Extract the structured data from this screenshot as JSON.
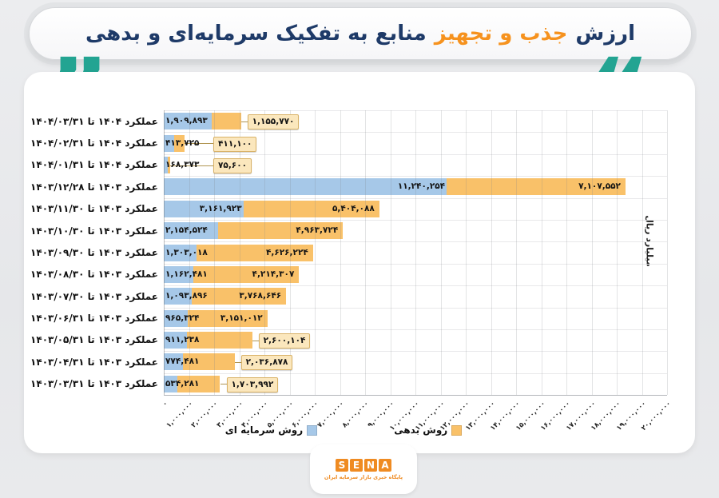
{
  "header": {
    "title_part1": "ارزش",
    "title_highlight": "جذب و تجهیز",
    "title_part2": "منابع به تفکیک سرمایه‌ای و بدهی",
    "quote_left_glyph": "”",
    "quote_right_glyph": "“",
    "quote_color": "#23a492",
    "title_color": "#1e3a68",
    "highlight_color": "#f6921e"
  },
  "chart_data": {
    "type": "bar",
    "orientation": "horizontal-stacked",
    "title": "ارزش جذب و تجهیز منابع به تفکیک سرمایه‌ای و بدهی",
    "value_axis_label": "میلیارد ریال",
    "axis_min": 0,
    "axis_max": 20000000,
    "axis_tick_step": 1000000,
    "grid": true,
    "legend_position": "bottom",
    "axis_tick_labels": [
      "۰",
      "۱,۰۰۰,۰۰۰",
      "۲,۰۰۰,۰۰۰",
      "۳,۰۰۰,۰۰۰",
      "۴,۰۰۰,۰۰۰",
      "۵,۰۰۰,۰۰۰",
      "۶,۰۰۰,۰۰۰",
      "۷,۰۰۰,۰۰۰",
      "۸,۰۰۰,۰۰۰",
      "۹,۰۰۰,۰۰۰",
      "۱۰,۰۰۰,۰۰۰",
      "۱۱,۰۰۰,۰۰۰",
      "۱۲,۰۰۰,۰۰۰",
      "۱۳,۰۰۰,۰۰۰",
      "۱۴,۰۰۰,۰۰۰",
      "۱۵,۰۰۰,۰۰۰",
      "۱۶,۰۰۰,۰۰۰",
      "۱۷,۰۰۰,۰۰۰",
      "۱۸,۰۰۰,۰۰۰",
      "۱۹,۰۰۰,۰۰۰",
      "۲۰,۰۰۰,۰۰۰"
    ],
    "categories": [
      "عملکرد ۱۴۰۴ تا ۱۴۰۴/۰۳/۳۱",
      "عملکرد ۱۴۰۴ تا ۱۴۰۴/۰۲/۳۱",
      "عملکرد ۱۴۰۴ تا ۱۴۰۴/۰۱/۳۱",
      "عملکرد ۱۴۰۳ تا ۱۴۰۳/۱۲/۲۸",
      "عملکرد ۱۴۰۳ تا ۱۴۰۳/۱۱/۳۰",
      "عملکرد ۱۴۰۳ تا ۱۴۰۳/۱۰/۳۰",
      "عملکرد ۱۴۰۳ تا ۱۴۰۳/۰۹/۳۰",
      "عملکرد ۱۴۰۳ تا ۱۴۰۳/۰۸/۳۰",
      "عملکرد ۱۴۰۳ تا ۱۴۰۳/۰۷/۳۰",
      "عملکرد ۱۴۰۳ تا ۱۴۰۳/۰۶/۳۱",
      "عملکرد ۱۴۰۳ تا ۱۴۰۳/۰۵/۳۱",
      "عملکرد ۱۴۰۳ تا ۱۴۰۳/۰۴/۳۱",
      "عملکرد ۱۴۰۳ تا ۱۴۰۳/۰۳/۳۱"
    ],
    "series": [
      {
        "name": "روش سرمایه ای",
        "color": "#a6c8e8",
        "values": [
          1909893,
          413725,
          168373,
          11240254,
          3161923,
          2154524,
          1303018,
          1162481,
          1093896,
          965324,
          911238,
          774481,
          534281
        ],
        "labels": [
          "۱,۹۰۹,۸۹۳",
          "۴۱۳,۷۲۵",
          "۱۶۸,۳۷۳",
          "۱۱,۲۴۰,۲۵۴",
          "۳,۱۶۱,۹۲۳",
          "۲,۱۵۴,۵۲۴",
          "۱,۳۰۳,۰۱۸",
          "۱,۱۶۲,۴۸۱",
          "۱,۰۹۳,۸۹۶",
          "۹۶۵,۳۲۴",
          "۹۱۱,۲۳۸",
          "۷۷۴,۴۸۱",
          "۵۳۴,۲۸۱"
        ]
      },
      {
        "name": "روش بدهی",
        "color": "#f9c169",
        "values": [
          1155770,
          411100,
          75600,
          7107552,
          5404088,
          4963724,
          4626224,
          4214307,
          3768646,
          3151012,
          2600104,
          2036878,
          1703992
        ],
        "labels": [
          "۱,۱۵۵,۷۷۰",
          "۴۱۱,۱۰۰",
          "۷۵,۶۰۰",
          "۷,۱۰۷,۵۵۲",
          "۵,۴۰۴,۰۸۸",
          "۴,۹۶۳,۷۲۴",
          "۴,۶۲۶,۲۲۴",
          "۴,۲۱۴,۳۰۷",
          "۳,۷۶۸,۶۴۶",
          "۳,۱۵۱,۰۱۲",
          "۲,۶۰۰,۱۰۴",
          "۲,۰۳۶,۸۷۸",
          "۱,۷۰۳,۹۹۲"
        ]
      }
    ],
    "legend": [
      {
        "label": "روش سرمایه ای",
        "color": "#a6c8e8"
      },
      {
        "label": "روش بدهی",
        "color": "#f9c169"
      }
    ]
  },
  "footer": {
    "logo_letters": [
      "S",
      "E",
      "N",
      "A"
    ],
    "logo_color": "#ef8b22",
    "tagline": "پایگاه خبری بازار سرمایه ایران"
  }
}
